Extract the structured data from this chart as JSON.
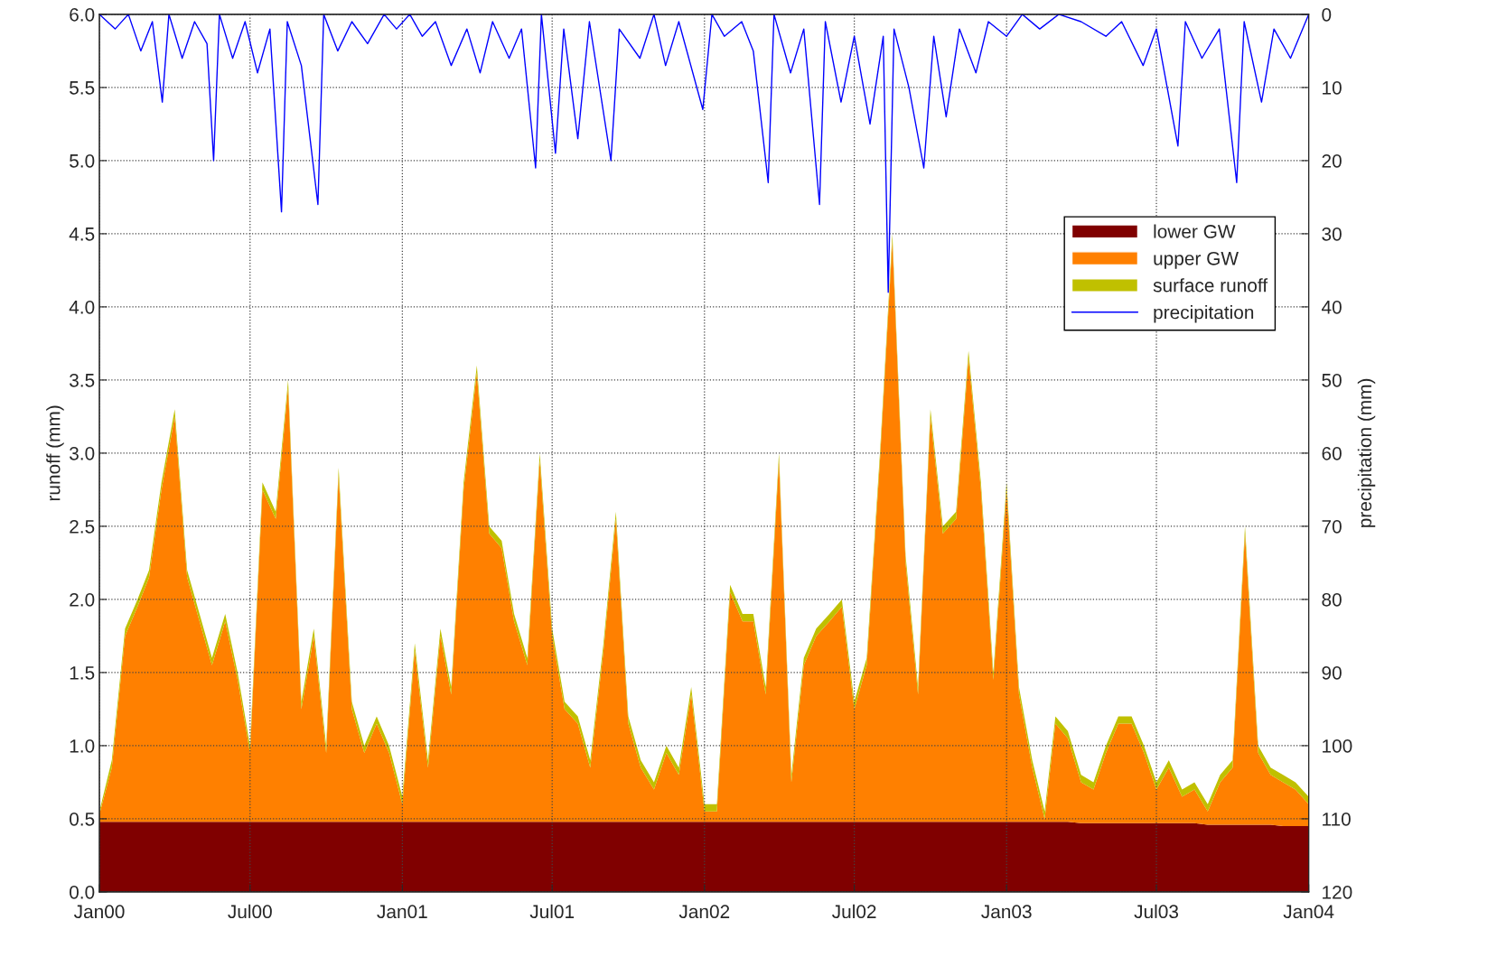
{
  "chart_data": {
    "type": "area",
    "stacked": true,
    "xlabel": null,
    "ylabel": "runoff (mm)",
    "y2label": "precipitation (mm)",
    "x": [
      "2000-01-01",
      "2000-01-16",
      "2000-02-01",
      "2000-02-16",
      "2000-03-01",
      "2000-03-16",
      "2000-04-01",
      "2000-04-16",
      "2000-05-01",
      "2000-05-16",
      "2000-06-01",
      "2000-06-16",
      "2000-07-01",
      "2000-07-16",
      "2000-08-01",
      "2000-08-16",
      "2000-09-01",
      "2000-09-16",
      "2000-10-01",
      "2000-10-16",
      "2000-11-01",
      "2000-11-16",
      "2000-12-01",
      "2000-12-16",
      "2001-01-01",
      "2001-01-16",
      "2001-02-01",
      "2001-02-16",
      "2001-03-01",
      "2001-03-16",
      "2001-04-01",
      "2001-04-16",
      "2001-05-01",
      "2001-05-16",
      "2001-06-01",
      "2001-06-16",
      "2001-07-01",
      "2001-07-16",
      "2001-08-01",
      "2001-08-16",
      "2001-09-01",
      "2001-09-16",
      "2001-10-01",
      "2001-10-16",
      "2001-11-01",
      "2001-11-16",
      "2001-12-01",
      "2001-12-16",
      "2002-01-01",
      "2002-01-16",
      "2002-02-01",
      "2002-02-16",
      "2002-03-01",
      "2002-03-16",
      "2002-04-01",
      "2002-04-16",
      "2002-05-01",
      "2002-05-16",
      "2002-06-01",
      "2002-06-16",
      "2002-07-01",
      "2002-07-16",
      "2002-08-01",
      "2002-08-16",
      "2002-09-01",
      "2002-09-16",
      "2002-10-01",
      "2002-10-16",
      "2002-11-01",
      "2002-11-16",
      "2002-12-01",
      "2002-12-16",
      "2003-01-01",
      "2003-01-16",
      "2003-02-01",
      "2003-02-16",
      "2003-03-01",
      "2003-03-16",
      "2003-04-01",
      "2003-04-16",
      "2003-05-01",
      "2003-05-16",
      "2003-06-01",
      "2003-06-16",
      "2003-07-01",
      "2003-07-16",
      "2003-08-01",
      "2003-08-16",
      "2003-09-01",
      "2003-09-16",
      "2003-10-01",
      "2003-10-16",
      "2003-11-01",
      "2003-11-16",
      "2003-12-01",
      "2003-12-16",
      "2004-01-01"
    ],
    "series": [
      {
        "name": "lower GW",
        "color": "#800000",
        "values": [
          0.48,
          0.48,
          0.48,
          0.48,
          0.48,
          0.48,
          0.48,
          0.48,
          0.48,
          0.48,
          0.48,
          0.48,
          0.48,
          0.48,
          0.48,
          0.48,
          0.48,
          0.48,
          0.48,
          0.48,
          0.48,
          0.48,
          0.48,
          0.48,
          0.48,
          0.48,
          0.48,
          0.48,
          0.48,
          0.48,
          0.48,
          0.48,
          0.48,
          0.48,
          0.48,
          0.48,
          0.48,
          0.48,
          0.48,
          0.48,
          0.48,
          0.48,
          0.48,
          0.48,
          0.48,
          0.48,
          0.48,
          0.48,
          0.48,
          0.48,
          0.48,
          0.48,
          0.48,
          0.48,
          0.48,
          0.48,
          0.48,
          0.48,
          0.48,
          0.48,
          0.48,
          0.48,
          0.48,
          0.48,
          0.48,
          0.48,
          0.48,
          0.48,
          0.48,
          0.48,
          0.48,
          0.48,
          0.48,
          0.48,
          0.48,
          0.48,
          0.48,
          0.48,
          0.47,
          0.47,
          0.47,
          0.47,
          0.47,
          0.47,
          0.47,
          0.47,
          0.47,
          0.47,
          0.46,
          0.46,
          0.46,
          0.46,
          0.46,
          0.46,
          0.45,
          0.45,
          0.45
        ]
      },
      {
        "name": "upper GW",
        "color": "#ff8000",
        "values": [
          0.05,
          0.37,
          1.27,
          1.47,
          1.67,
          2.27,
          2.77,
          1.67,
          1.37,
          1.07,
          1.37,
          0.97,
          0.47,
          2.27,
          2.07,
          2.97,
          0.77,
          1.27,
          0.47,
          2.37,
          0.77,
          0.47,
          0.67,
          0.47,
          0.12,
          1.17,
          0.37,
          1.27,
          0.87,
          2.27,
          3.07,
          1.97,
          1.87,
          1.37,
          1.07,
          2.47,
          1.27,
          0.77,
          0.67,
          0.37,
          1.17,
          2.07,
          0.67,
          0.37,
          0.22,
          0.47,
          0.32,
          0.87,
          0.07,
          0.07,
          1.57,
          1.37,
          1.37,
          0.87,
          2.47,
          0.27,
          1.07,
          1.27,
          1.37,
          1.47,
          0.77,
          1.07,
          2.47,
          3.97,
          1.77,
          0.87,
          2.77,
          1.97,
          2.07,
          3.17,
          2.27,
          0.97,
          2.27,
          0.87,
          0.37,
          0.02,
          0.67,
          0.57,
          0.28,
          0.23,
          0.48,
          0.68,
          0.68,
          0.48,
          0.23,
          0.38,
          0.18,
          0.23,
          0.09,
          0.29,
          0.39,
          1.99,
          0.49,
          0.34,
          0.3,
          0.25,
          0.15
        ]
      },
      {
        "name": "surface runoff",
        "color": "#c0c000",
        "values": [
          0.02,
          0.05,
          0.05,
          0.05,
          0.05,
          0.05,
          0.05,
          0.05,
          0.05,
          0.05,
          0.05,
          0.05,
          0.05,
          0.05,
          0.05,
          0.05,
          0.05,
          0.05,
          0.05,
          0.05,
          0.05,
          0.05,
          0.05,
          0.05,
          0.05,
          0.05,
          0.05,
          0.05,
          0.05,
          0.05,
          0.05,
          0.05,
          0.05,
          0.05,
          0.05,
          0.05,
          0.05,
          0.05,
          0.05,
          0.05,
          0.05,
          0.05,
          0.05,
          0.05,
          0.05,
          0.05,
          0.05,
          0.05,
          0.05,
          0.05,
          0.05,
          0.05,
          0.05,
          0.05,
          0.05,
          0.05,
          0.05,
          0.05,
          0.05,
          0.05,
          0.05,
          0.05,
          0.05,
          0.05,
          0.05,
          0.05,
          0.05,
          0.05,
          0.05,
          0.05,
          0.05,
          0.05,
          0.05,
          0.05,
          0.05,
          0.05,
          0.05,
          0.05,
          0.05,
          0.05,
          0.05,
          0.05,
          0.05,
          0.05,
          0.05,
          0.05,
          0.05,
          0.05,
          0.05,
          0.05,
          0.05,
          0.05,
          0.05,
          0.05,
          0.05,
          0.05,
          0.05
        ]
      },
      {
        "name": "precipitation",
        "color": "#0000ff",
        "type": "line",
        "axis": "y2",
        "x": [
          "2000-01-01",
          "2000-01-20",
          "2000-02-05",
          "2000-02-20",
          "2000-03-05",
          "2000-03-17",
          "2000-03-25",
          "2000-04-10",
          "2000-04-25",
          "2000-05-10",
          "2000-05-18",
          "2000-05-25",
          "2000-06-10",
          "2000-06-25",
          "2000-07-10",
          "2000-07-25",
          "2000-08-08",
          "2000-08-15",
          "2000-09-01",
          "2000-09-21",
          "2000-09-28",
          "2000-10-15",
          "2000-11-01",
          "2000-11-20",
          "2000-12-10",
          "2000-12-25",
          "2001-01-10",
          "2001-01-25",
          "2001-02-10",
          "2001-03-01",
          "2001-03-20",
          "2001-04-05",
          "2001-04-20",
          "2001-05-10",
          "2001-05-25",
          "2001-06-11",
          "2001-06-18",
          "2001-07-05",
          "2001-07-15",
          "2001-08-01",
          "2001-08-15",
          "2001-09-10",
          "2001-09-20",
          "2001-10-15",
          "2001-11-01",
          "2001-11-15",
          "2001-12-01",
          "2001-12-30",
          "2002-01-10",
          "2002-01-25",
          "2002-02-15",
          "2002-03-01",
          "2002-03-19",
          "2002-03-26",
          "2002-04-15",
          "2002-05-01",
          "2002-05-20",
          "2002-05-27",
          "2002-06-15",
          "2002-07-01",
          "2002-07-20",
          "2002-08-05",
          "2002-08-11",
          "2002-08-18",
          "2002-09-05",
          "2002-09-23",
          "2002-10-05",
          "2002-10-20",
          "2002-11-05",
          "2002-11-25",
          "2002-12-10",
          "2003-01-01",
          "2003-01-20",
          "2003-02-10",
          "2003-03-05",
          "2003-04-01",
          "2003-05-01",
          "2003-05-20",
          "2003-06-15",
          "2003-07-01",
          "2003-07-27",
          "2003-08-05",
          "2003-08-25",
          "2003-09-15",
          "2003-10-06",
          "2003-10-15",
          "2003-11-05",
          "2003-11-20",
          "2003-12-10",
          "2004-01-01"
        ],
        "values": [
          0,
          2,
          0,
          5,
          1,
          12,
          0,
          6,
          1,
          4,
          20,
          0,
          6,
          1,
          8,
          2,
          27,
          1,
          7,
          26,
          0,
          5,
          1,
          4,
          0,
          2,
          0,
          3,
          1,
          7,
          2,
          8,
          1,
          6,
          2,
          21,
          0,
          19,
          2,
          17,
          1,
          20,
          2,
          6,
          0,
          7,
          1,
          13,
          0,
          3,
          1,
          5,
          23,
          0,
          8,
          2,
          26,
          1,
          12,
          3,
          15,
          3,
          38,
          2,
          10,
          21,
          3,
          14,
          2,
          8,
          1,
          3,
          0,
          2,
          0,
          1,
          3,
          1,
          7,
          2,
          18,
          1,
          6,
          2,
          23,
          1,
          12,
          2,
          6,
          0
        ]
      }
    ],
    "xlim": [
      "2000-01-01",
      "2004-01-01"
    ],
    "xticks": [
      {
        "value": "2000-01-01",
        "label": "Jan00"
      },
      {
        "value": "2000-07-01",
        "label": "Jul00"
      },
      {
        "value": "2001-01-01",
        "label": "Jan01"
      },
      {
        "value": "2001-07-01",
        "label": "Jul01"
      },
      {
        "value": "2002-01-01",
        "label": "Jan02"
      },
      {
        "value": "2002-07-01",
        "label": "Jul02"
      },
      {
        "value": "2003-01-01",
        "label": "Jan03"
      },
      {
        "value": "2003-07-01",
        "label": "Jul03"
      },
      {
        "value": "2004-01-01",
        "label": "Jan04"
      }
    ],
    "ylim": [
      0,
      6
    ],
    "yticks": [
      {
        "value": 0,
        "label": "0.0"
      },
      {
        "value": 0.5,
        "label": "0.5"
      },
      {
        "value": 1,
        "label": "1.0"
      },
      {
        "value": 1.5,
        "label": "1.5"
      },
      {
        "value": 2,
        "label": "2.0"
      },
      {
        "value": 2.5,
        "label": "2.5"
      },
      {
        "value": 3,
        "label": "3.0"
      },
      {
        "value": 3.5,
        "label": "3.5"
      },
      {
        "value": 4,
        "label": "4.0"
      },
      {
        "value": 4.5,
        "label": "4.5"
      },
      {
        "value": 5,
        "label": "5.0"
      },
      {
        "value": 5.5,
        "label": "5.5"
      },
      {
        "value": 6,
        "label": "6.0"
      }
    ],
    "y2lim": [
      120,
      0
    ],
    "y2ticks": [
      0,
      10,
      20,
      30,
      40,
      50,
      60,
      70,
      80,
      90,
      100,
      110,
      120
    ],
    "grid": true,
    "legend": "top right"
  }
}
